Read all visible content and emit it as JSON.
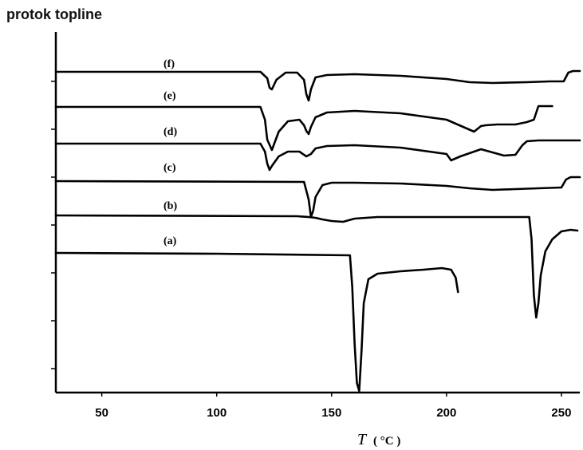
{
  "title": "protok topline",
  "chart_data": {
    "type": "line",
    "xlabel_symbol": "T",
    "xlabel_unit": "( °C )",
    "xlim": [
      30,
      258
    ],
    "xticks": [
      50,
      100,
      150,
      200,
      250
    ],
    "grid": false,
    "y_tick_labels_shown": false,
    "series": [
      {
        "name": "(f)",
        "x": [
          30,
          119,
          122,
          123,
          124,
          126,
          130,
          135,
          138,
          139,
          140,
          141,
          143,
          148,
          160,
          180,
          200,
          210,
          220,
          235,
          245,
          251,
          253,
          255,
          258
        ],
        "y": [
          90,
          90,
          98,
          110,
          112,
          100,
          91,
          91,
          100,
          118,
          126,
          112,
          97,
          94,
          93,
          95,
          99,
          103,
          104,
          103,
          102,
          102,
          91,
          89,
          89
        ]
      },
      {
        "name": "(e)",
        "x": [
          30,
          119,
          121,
          122,
          124,
          127,
          131,
          136,
          138,
          139,
          140,
          141,
          143,
          148,
          160,
          180,
          200,
          212,
          215,
          217,
          222,
          230,
          235,
          238,
          240,
          246
        ],
        "y": [
          134,
          134,
          150,
          175,
          188,
          165,
          152,
          150,
          157,
          164,
          168,
          159,
          147,
          141,
          139,
          142,
          150,
          165,
          158,
          157,
          156,
          156,
          153,
          150,
          133,
          133
        ]
      },
      {
        "name": "(d)",
        "x": [
          30,
          119,
          121,
          122,
          123,
          124,
          127,
          131,
          136,
          139,
          141,
          143,
          148,
          160,
          180,
          200,
          202,
          206,
          215,
          220,
          225,
          230,
          233,
          235,
          240,
          258
        ],
        "y": [
          180,
          180,
          190,
          205,
          213,
          208,
          196,
          190,
          190,
          196,
          193,
          186,
          183,
          182,
          185,
          193,
          201,
          196,
          187,
          191,
          195,
          194,
          182,
          177,
          176,
          176
        ]
      },
      {
        "name": "(c)",
        "x": [
          30,
          138,
          140,
          141,
          142,
          143,
          146,
          150,
          160,
          180,
          200,
          210,
          220,
          230,
          240,
          250,
          252,
          254,
          256,
          258
        ],
        "y": [
          227,
          228,
          250,
          272,
          264,
          247,
          232,
          229,
          229,
          230,
          233,
          236,
          238,
          237,
          236,
          235,
          225,
          222,
          222,
          222
        ]
      },
      {
        "name": "(b)",
        "x": [
          30,
          135,
          140,
          143,
          146,
          150,
          155,
          160,
          170,
          200,
          236,
          237,
          238,
          239,
          240,
          241,
          243,
          246,
          250,
          254,
          257
        ],
        "y": [
          270,
          271,
          272,
          273,
          275,
          277,
          278,
          274,
          272,
          272,
          272,
          300,
          370,
          398,
          380,
          345,
          315,
          300,
          290,
          288,
          289
        ]
      },
      {
        "name": "(a)",
        "x": [
          30,
          100,
          158,
          159,
          160,
          161,
          162,
          163,
          164,
          166,
          170,
          180,
          190,
          198,
          202,
          204,
          205
        ],
        "y": [
          317,
          318,
          320,
          360,
          430,
          480,
          490,
          440,
          380,
          350,
          343,
          340,
          338,
          336,
          338,
          348,
          366
        ]
      }
    ],
    "label_anchors": [
      {
        "name": "(f)",
        "x": 72
      },
      {
        "name": "(e)",
        "x": 72
      },
      {
        "name": "(d)",
        "x": 72
      },
      {
        "name": "(c)",
        "x": 72
      },
      {
        "name": "(b)",
        "x": 72
      },
      {
        "name": "(a)",
        "x": 72
      }
    ]
  }
}
